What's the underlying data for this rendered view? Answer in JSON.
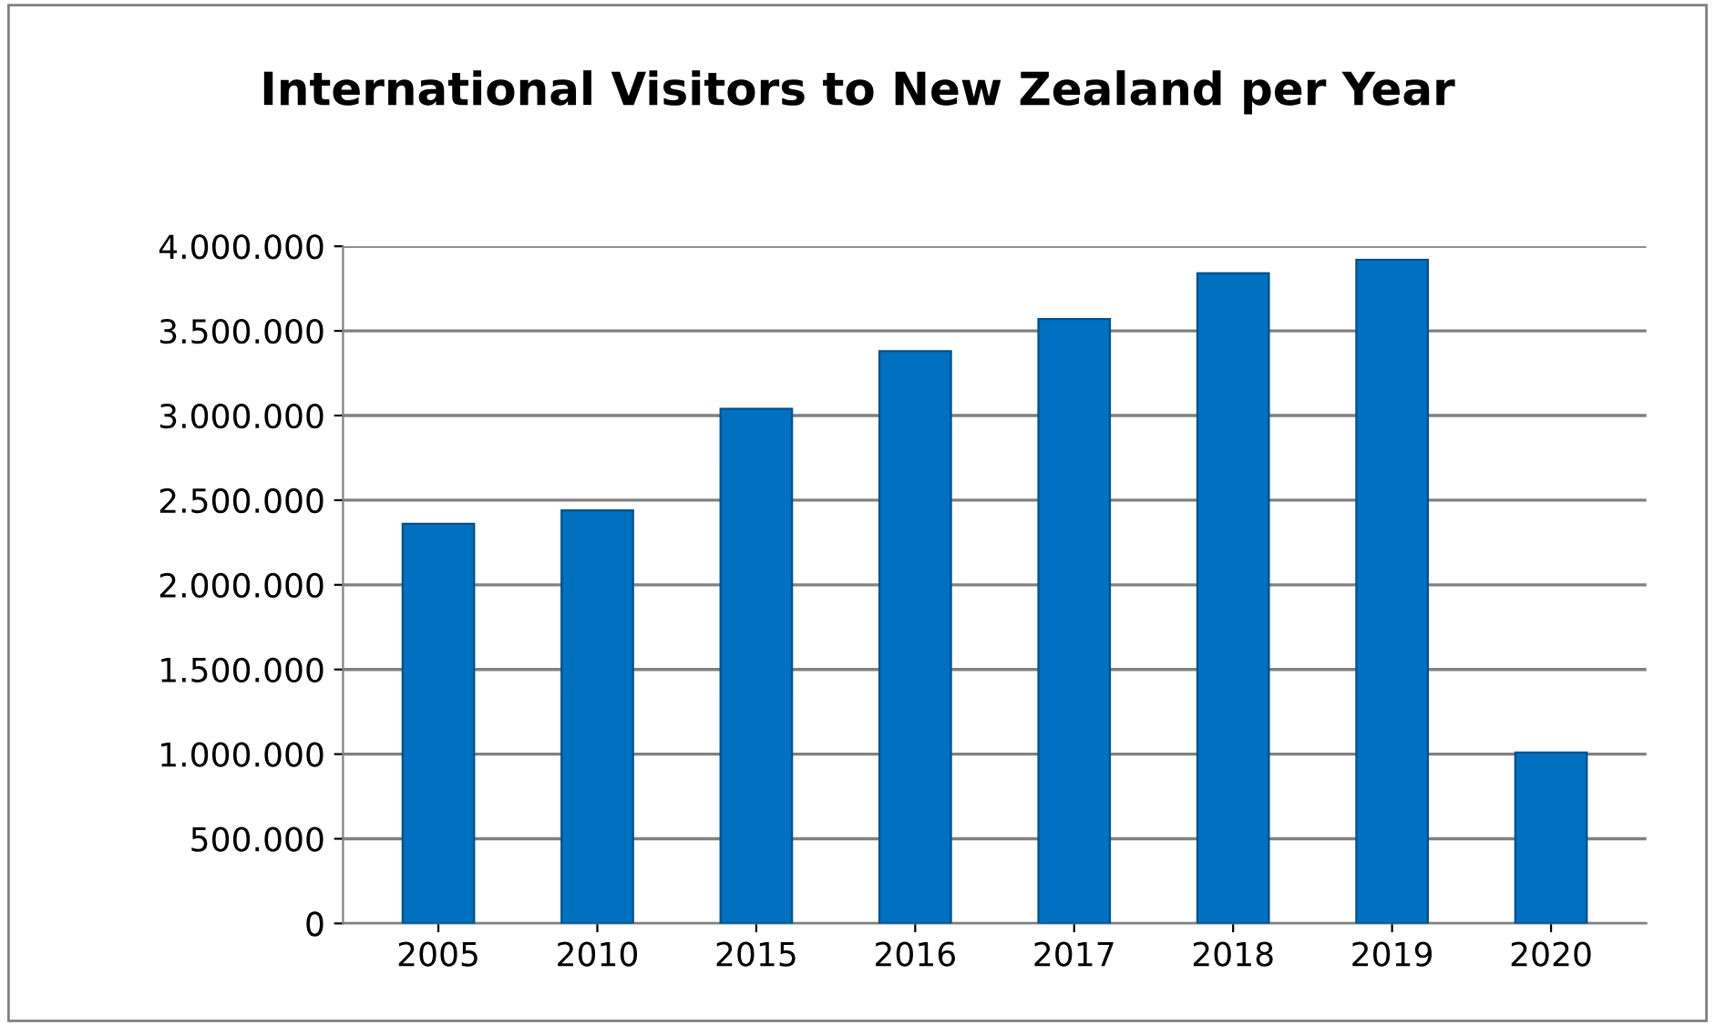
{
  "chart_data": {
    "type": "bar",
    "title": "International Visitors to New Zealand per Year",
    "categories": [
      "2005",
      "2010",
      "2015",
      "2016",
      "2017",
      "2018",
      "2019",
      "2020"
    ],
    "values": [
      2360000,
      2440000,
      3040000,
      3380000,
      3570000,
      3840000,
      3920000,
      1010000
    ],
    "color": "#0070c0",
    "ylim": [
      0,
      4000000
    ],
    "yticks": [
      0,
      {
        "value": 500000,
        "label": "500.000"
      },
      {
        "value": 1000000,
        "label": "1.000.000"
      },
      {
        "value": 1500000,
        "label": "1.500.000"
      },
      {
        "value": 2000000,
        "label": "2.000.000"
      },
      {
        "value": 2500000,
        "label": "2.500.000"
      },
      {
        "value": 3000000,
        "label": "3.000.000"
      },
      {
        "value": 3500000,
        "label": "3.500.000"
      },
      {
        "value": 4000000,
        "label": "4.000.000"
      }
    ],
    "grid": "y",
    "legend": false
  }
}
